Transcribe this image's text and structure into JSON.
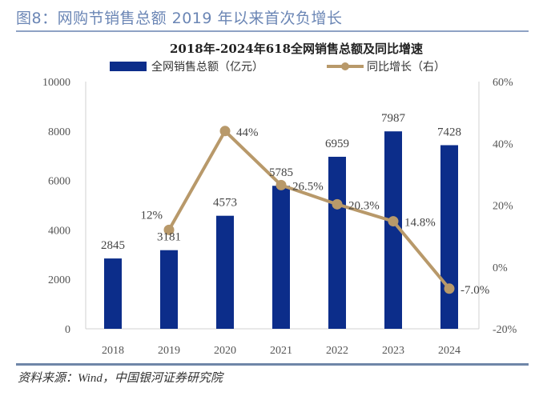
{
  "figure": {
    "title": "图8：网购节销售总额 2019 年以来首次负增长",
    "source": "资料来源：Wind，中国银河证券研究院"
  },
  "colors": {
    "bar": "#0c2d8a",
    "line": "#b8996a",
    "axis": "#d0d0d0",
    "title_accent": "#6b86b5"
  },
  "chart_data": {
    "type": "bar",
    "title": "2018年-2024年618全网销售总额及同比增速",
    "categories": [
      "2018",
      "2019",
      "2020",
      "2021",
      "2022",
      "2023",
      "2024"
    ],
    "series": [
      {
        "name": "全网销售总额（亿元）",
        "type": "bar",
        "axis": "left",
        "values": [
          2845,
          3181,
          4573,
          5785,
          6959,
          7987,
          7428
        ],
        "labels": [
          "2845",
          "3181",
          "4573",
          "5785",
          "6959",
          "7987",
          "7428"
        ]
      },
      {
        "name": "同比增长（右）",
        "type": "line",
        "axis": "right",
        "values": [
          null,
          12,
          44,
          26.5,
          20.3,
          14.8,
          -7.0
        ],
        "labels": [
          "",
          "12%",
          "44%",
          "26.5%",
          "20.3%",
          "14.8%",
          "-7.0%"
        ]
      }
    ],
    "y_left": {
      "range": [
        0,
        10000
      ],
      "ticks": [
        "0",
        "2000",
        "4000",
        "6000",
        "8000",
        "10000"
      ],
      "tick_values": [
        0,
        2000,
        4000,
        6000,
        8000,
        10000
      ]
    },
    "y_right": {
      "range": [
        -20,
        60
      ],
      "ticks": [
        "-20%",
        "0%",
        "20%",
        "40%",
        "60%"
      ],
      "tick_values": [
        -20,
        0,
        20,
        40,
        60
      ]
    },
    "xlabel": "",
    "ylabel": "",
    "legend_position": "top",
    "grid": false
  }
}
